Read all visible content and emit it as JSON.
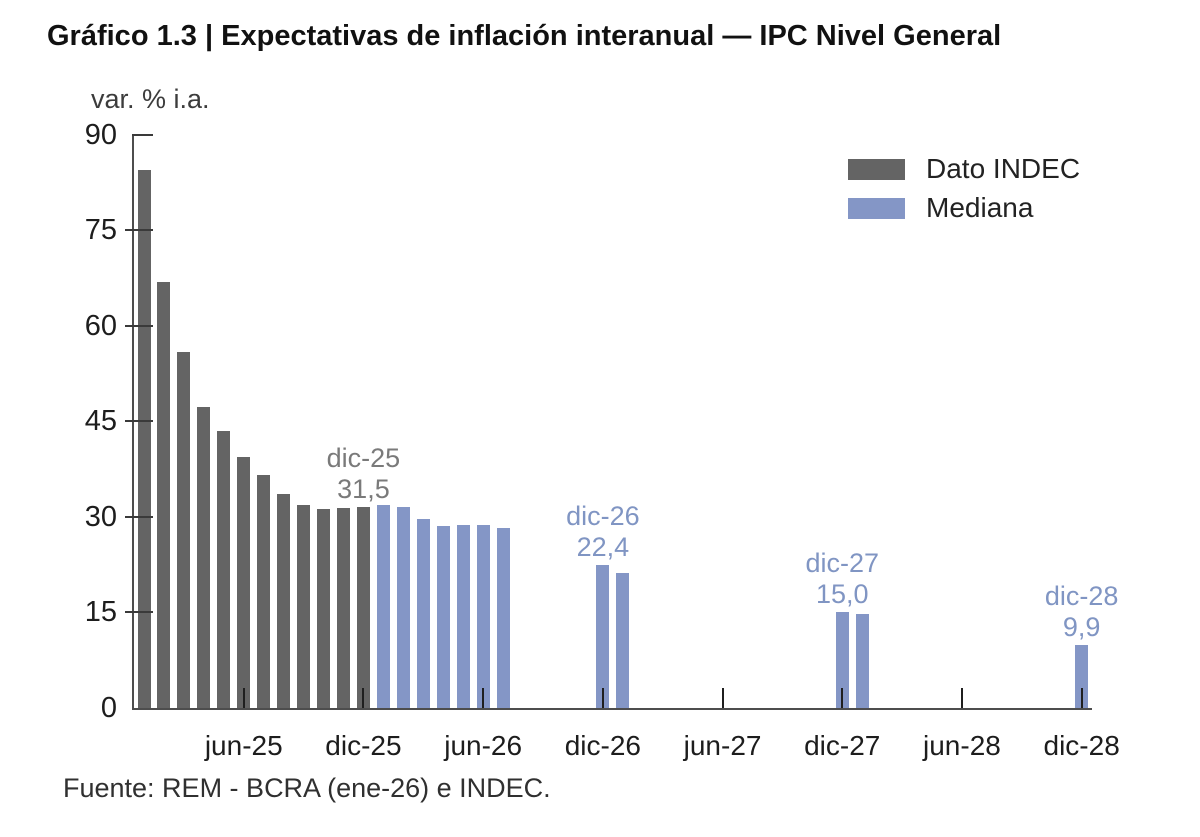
{
  "title": "Gráfico 1.3 | Expectativas de inflación interanual — IPC Nivel General",
  "source": "Fuente: REM - BCRA (ene-26) e INDEC.",
  "legend": {
    "items": [
      {
        "label": "Dato INDEC",
        "series": "indec",
        "color": "#646464"
      },
      {
        "label": "Mediana",
        "series": "mediana",
        "color": "#8496c6"
      }
    ]
  },
  "chart_data": {
    "type": "bar",
    "title": "Gráfico 1.3 | Expectativas de inflación interanual — IPC Nivel General",
    "ylabel": "var. % i.a.",
    "ylim": [
      0,
      90
    ],
    "yticks": [
      0,
      15,
      30,
      45,
      60,
      75,
      90
    ],
    "grid": false,
    "legend_position": "top-right",
    "series_colors": {
      "indec": "#646464",
      "mediana": "#8496c6"
    },
    "series": [
      {
        "name": "Dato INDEC",
        "key": "indec"
      },
      {
        "name": "Mediana",
        "key": "mediana"
      }
    ],
    "bars": [
      {
        "month": "ene-25",
        "index": 0,
        "value": 84.5,
        "series": "indec"
      },
      {
        "month": "feb-25",
        "index": 1,
        "value": 66.9,
        "series": "indec"
      },
      {
        "month": "mar-25",
        "index": 2,
        "value": 55.9,
        "series": "indec"
      },
      {
        "month": "abr-25",
        "index": 3,
        "value": 47.3,
        "series": "indec"
      },
      {
        "month": "may-25",
        "index": 4,
        "value": 43.5,
        "series": "indec"
      },
      {
        "month": "jun-25",
        "index": 5,
        "value": 39.4,
        "series": "indec"
      },
      {
        "month": "jul-25",
        "index": 6,
        "value": 36.6,
        "series": "indec"
      },
      {
        "month": "ago-25",
        "index": 7,
        "value": 33.6,
        "series": "indec"
      },
      {
        "month": "sep-25",
        "index": 8,
        "value": 31.8,
        "series": "indec"
      },
      {
        "month": "oct-25",
        "index": 9,
        "value": 31.3,
        "series": "indec"
      },
      {
        "month": "nov-25",
        "index": 10,
        "value": 31.4,
        "series": "indec"
      },
      {
        "month": "dic-25",
        "index": 11,
        "value": 31.5,
        "series": "indec"
      },
      {
        "month": "ene-26",
        "index": 12,
        "value": 31.9,
        "series": "mediana"
      },
      {
        "month": "feb-26",
        "index": 13,
        "value": 31.5,
        "series": "mediana"
      },
      {
        "month": "mar-26",
        "index": 14,
        "value": 29.6,
        "series": "mediana"
      },
      {
        "month": "abr-26",
        "index": 15,
        "value": 28.6,
        "series": "mediana"
      },
      {
        "month": "may-26",
        "index": 16,
        "value": 28.8,
        "series": "mediana"
      },
      {
        "month": "jun-26",
        "index": 17,
        "value": 28.8,
        "series": "mediana"
      },
      {
        "month": "jul-26",
        "index": 18,
        "value": 28.2,
        "series": "mediana"
      },
      {
        "month": "dic-26",
        "index": 23,
        "value": 22.4,
        "series": "mediana"
      },
      {
        "month": "ene-27",
        "index": 24,
        "value": 21.2,
        "series": "mediana"
      },
      {
        "month": "dic-27",
        "index": 35,
        "value": 15.0,
        "series": "mediana"
      },
      {
        "month": "ene-28",
        "index": 36,
        "value": 14.8,
        "series": "mediana"
      },
      {
        "month": "dic-28",
        "index": 47,
        "value": 9.9,
        "series": "mediana"
      }
    ],
    "xticks": [
      {
        "label": "jun-25",
        "index": 5
      },
      {
        "label": "dic-25",
        "index": 11
      },
      {
        "label": "jun-26",
        "index": 17
      },
      {
        "label": "dic-26",
        "index": 23
      },
      {
        "label": "jun-27",
        "index": 29
      },
      {
        "label": "dic-27",
        "index": 35
      },
      {
        "label": "jun-28",
        "index": 41
      },
      {
        "label": "dic-28",
        "index": 47
      }
    ],
    "annotations": [
      {
        "line1": "dic-25",
        "line2": "31,5",
        "index": 11,
        "anchor_value": 31.5,
        "color": "#7a7a7a"
      },
      {
        "line1": "dic-26",
        "line2": "22,4",
        "index": 23,
        "anchor_value": 22.4,
        "color": "#8095c3"
      },
      {
        "line1": "dic-27",
        "line2": "15,0",
        "index": 35,
        "anchor_value": 15.0,
        "color": "#8095c3"
      },
      {
        "line1": "dic-28",
        "line2": "9,9",
        "index": 47,
        "anchor_value": 9.9,
        "color": "#8095c3"
      }
    ]
  }
}
